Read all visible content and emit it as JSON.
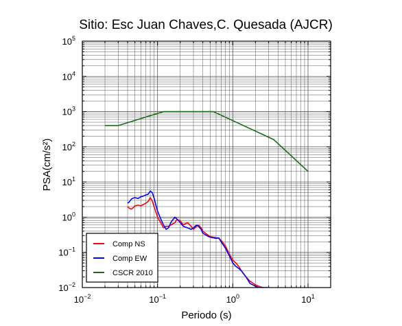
{
  "chart_data": {
    "type": "line",
    "title": "Sitio: Esc Juan Chaves,C. Quesada (AJCR)",
    "xlabel": "Periodo (s)",
    "ylabel": "PSA(cm/s²)",
    "x_scale": "log",
    "y_scale": "log",
    "xlim": [
      0.01,
      20
    ],
    "ylim": [
      0.01,
      100000
    ],
    "grid": true,
    "legend_position": "bottom-left",
    "x_ticks": [
      {
        "value": 0.01,
        "base": "10",
        "exp": "−2"
      },
      {
        "value": 0.1,
        "base": "10",
        "exp": "−1"
      },
      {
        "value": 1,
        "base": "10",
        "exp": "0"
      },
      {
        "value": 10,
        "base": "10",
        "exp": "1"
      }
    ],
    "y_ticks": [
      {
        "value": 0.01,
        "base": "10",
        "exp": "−2"
      },
      {
        "value": 0.1,
        "base": "10",
        "exp": "−1"
      },
      {
        "value": 1,
        "base": "10",
        "exp": "0"
      },
      {
        "value": 10,
        "base": "10",
        "exp": "1"
      },
      {
        "value": 100,
        "base": "10",
        "exp": "2"
      },
      {
        "value": 1000,
        "base": "10",
        "exp": "3"
      },
      {
        "value": 10000,
        "base": "10",
        "exp": "4"
      },
      {
        "value": 100000,
        "base": "10",
        "exp": "5"
      }
    ],
    "series": [
      {
        "name": "Comp NS",
        "color": "#ff0000",
        "x": [
          0.04,
          0.042,
          0.045,
          0.048,
          0.05,
          0.055,
          0.06,
          0.065,
          0.07,
          0.075,
          0.08,
          0.085,
          0.09,
          0.095,
          0.1,
          0.11,
          0.12,
          0.13,
          0.14,
          0.15,
          0.16,
          0.17,
          0.18,
          0.2,
          0.22,
          0.25,
          0.28,
          0.3,
          0.33,
          0.35,
          0.38,
          0.4,
          0.45,
          0.5,
          0.55,
          0.6,
          0.65,
          0.7,
          0.8,
          0.9,
          1.0,
          1.1,
          1.2,
          1.3,
          1.5,
          1.7,
          2.0,
          2.2,
          2.5,
          3.0
        ],
        "values": [
          2.0,
          1.8,
          1.7,
          1.9,
          2.1,
          2.2,
          2.1,
          2.3,
          2.5,
          2.8,
          3.6,
          2.9,
          2.0,
          1.4,
          1.0,
          0.7,
          0.5,
          0.55,
          0.55,
          0.6,
          0.65,
          0.7,
          0.85,
          0.8,
          0.6,
          0.7,
          0.55,
          0.45,
          0.55,
          0.6,
          0.5,
          0.4,
          0.33,
          0.28,
          0.27,
          0.26,
          0.25,
          0.22,
          0.15,
          0.09,
          0.06,
          0.05,
          0.04,
          0.03,
          0.02,
          0.015,
          0.012,
          0.011,
          0.01,
          0.01
        ]
      },
      {
        "name": "Comp EW",
        "color": "#0000ff",
        "x": [
          0.04,
          0.042,
          0.045,
          0.048,
          0.05,
          0.055,
          0.06,
          0.065,
          0.07,
          0.075,
          0.08,
          0.085,
          0.09,
          0.095,
          0.1,
          0.11,
          0.12,
          0.13,
          0.14,
          0.15,
          0.16,
          0.17,
          0.18,
          0.2,
          0.22,
          0.25,
          0.28,
          0.3,
          0.33,
          0.35,
          0.38,
          0.4,
          0.45,
          0.5,
          0.55,
          0.6,
          0.65,
          0.7,
          0.8,
          0.9,
          1.0,
          1.1,
          1.2,
          1.3,
          1.5,
          1.7,
          2.0,
          2.2,
          2.5,
          3.0
        ],
        "values": [
          2.5,
          2.7,
          3.3,
          3.5,
          3.6,
          3.4,
          3.8,
          4.0,
          4.3,
          4.5,
          5.5,
          5.0,
          3.5,
          2.2,
          1.5,
          0.9,
          0.6,
          0.45,
          0.5,
          0.7,
          0.85,
          1.0,
          0.9,
          0.7,
          0.55,
          0.5,
          0.45,
          0.5,
          0.6,
          0.55,
          0.45,
          0.35,
          0.3,
          0.27,
          0.26,
          0.25,
          0.26,
          0.2,
          0.13,
          0.08,
          0.05,
          0.04,
          0.035,
          0.03,
          0.02,
          0.013,
          0.011,
          0.01,
          0.01,
          0.01
        ]
      },
      {
        "name": "CSCR 2010",
        "color": "#1a6b1a",
        "x": [
          0.02,
          0.03,
          0.12,
          0.55,
          3.5,
          10
        ],
        "values": [
          400,
          400,
          1000,
          1000,
          160,
          20
        ]
      }
    ]
  }
}
